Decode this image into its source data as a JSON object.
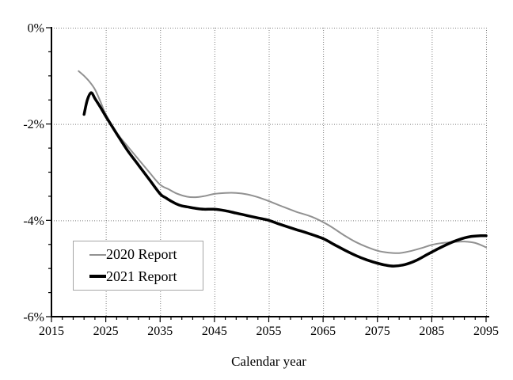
{
  "chart_data": {
    "type": "line",
    "title": "",
    "xlabel": "Calendar year",
    "ylabel": "",
    "xlim": [
      2015,
      2095
    ],
    "ylim": [
      -6,
      0
    ],
    "x_major_ticks": [
      2015,
      2025,
      2035,
      2045,
      2055,
      2065,
      2075,
      2085,
      2095
    ],
    "x_tick_labels": [
      "2015",
      "2025",
      "2035",
      "2045",
      "2055",
      "2065",
      "2075",
      "2085",
      "2095"
    ],
    "x_minor_tick_step": 2,
    "y_major_ticks": [
      0,
      -2,
      -4,
      -6
    ],
    "y_tick_labels": [
      "0%",
      "-2%",
      "-4%",
      "-6%"
    ],
    "y_minor_tick_step": 0.5,
    "grid": {
      "style": "dotted",
      "color": "#7f7f7f",
      "major_only": true
    },
    "legend": {
      "position": "lower-left",
      "entries": [
        {
          "label": "2020 Report",
          "color": "#919191",
          "line_width": 2
        },
        {
          "label": "2021 Report",
          "color": "#000000",
          "line_width": 3.5
        }
      ]
    },
    "series": [
      {
        "name": "2020 Report",
        "color": "#919191",
        "width": 2,
        "points": [
          [
            2020,
            -0.9
          ],
          [
            2021,
            -1.0
          ],
          [
            2022,
            -1.12
          ],
          [
            2023,
            -1.28
          ],
          [
            2024,
            -1.53
          ],
          [
            2025,
            -1.8
          ],
          [
            2027,
            -2.18
          ],
          [
            2029,
            -2.46
          ],
          [
            2031,
            -2.73
          ],
          [
            2033,
            -3.0
          ],
          [
            2035,
            -3.26
          ],
          [
            2036.5,
            -3.35
          ],
          [
            2038,
            -3.44
          ],
          [
            2040,
            -3.51
          ],
          [
            2041.5,
            -3.52
          ],
          [
            2043,
            -3.5
          ],
          [
            2045,
            -3.45
          ],
          [
            2047,
            -3.43
          ],
          [
            2049,
            -3.43
          ],
          [
            2051,
            -3.46
          ],
          [
            2053,
            -3.52
          ],
          [
            2055,
            -3.6
          ],
          [
            2057,
            -3.69
          ],
          [
            2060,
            -3.82
          ],
          [
            2063,
            -3.93
          ],
          [
            2066,
            -4.1
          ],
          [
            2069,
            -4.32
          ],
          [
            2071,
            -4.45
          ],
          [
            2073,
            -4.55
          ],
          [
            2075,
            -4.63
          ],
          [
            2077,
            -4.67
          ],
          [
            2079,
            -4.68
          ],
          [
            2081,
            -4.64
          ],
          [
            2083,
            -4.58
          ],
          [
            2085,
            -4.51
          ],
          [
            2087,
            -4.47
          ],
          [
            2089,
            -4.45
          ],
          [
            2091,
            -4.44
          ],
          [
            2093,
            -4.47
          ],
          [
            2095,
            -4.56
          ]
        ]
      },
      {
        "name": "2021 Report",
        "color": "#000000",
        "width": 3.5,
        "points": [
          [
            2021,
            -1.8
          ],
          [
            2021.6,
            -1.5
          ],
          [
            2022.3,
            -1.35
          ],
          [
            2023,
            -1.47
          ],
          [
            2024,
            -1.65
          ],
          [
            2025,
            -1.84
          ],
          [
            2026,
            -2.02
          ],
          [
            2027.5,
            -2.29
          ],
          [
            2029,
            -2.55
          ],
          [
            2031,
            -2.85
          ],
          [
            2033,
            -3.15
          ],
          [
            2035,
            -3.45
          ],
          [
            2036,
            -3.53
          ],
          [
            2037,
            -3.6
          ],
          [
            2038,
            -3.66
          ],
          [
            2039,
            -3.7
          ],
          [
            2040,
            -3.72
          ],
          [
            2041.5,
            -3.75
          ],
          [
            2043,
            -3.77
          ],
          [
            2045,
            -3.77
          ],
          [
            2047,
            -3.8
          ],
          [
            2049,
            -3.85
          ],
          [
            2051,
            -3.9
          ],
          [
            2053,
            -3.95
          ],
          [
            2055,
            -4.0
          ],
          [
            2057,
            -4.08
          ],
          [
            2060,
            -4.19
          ],
          [
            2062,
            -4.26
          ],
          [
            2065,
            -4.38
          ],
          [
            2067,
            -4.5
          ],
          [
            2069,
            -4.62
          ],
          [
            2071,
            -4.73
          ],
          [
            2073,
            -4.82
          ],
          [
            2075,
            -4.89
          ],
          [
            2076.5,
            -4.93
          ],
          [
            2078,
            -4.95
          ],
          [
            2080,
            -4.92
          ],
          [
            2082,
            -4.84
          ],
          [
            2084,
            -4.72
          ],
          [
            2086,
            -4.6
          ],
          [
            2088,
            -4.49
          ],
          [
            2090,
            -4.4
          ],
          [
            2092,
            -4.34
          ],
          [
            2094,
            -4.32
          ],
          [
            2095,
            -4.32
          ]
        ]
      }
    ]
  }
}
